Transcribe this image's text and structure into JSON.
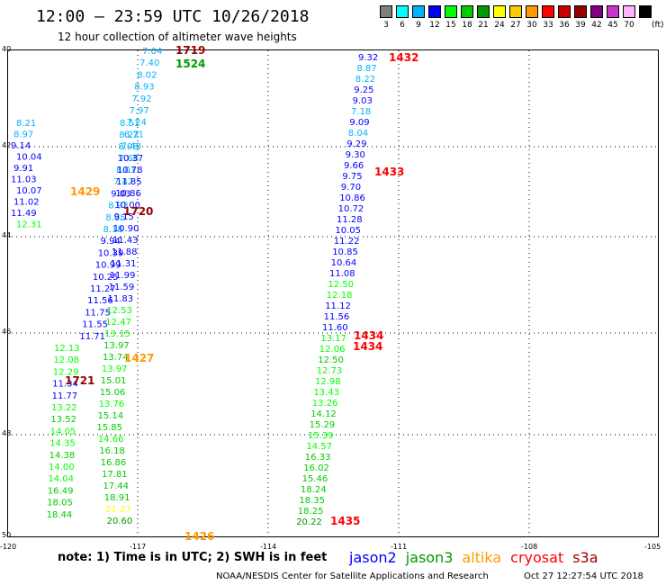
{
  "header": {
    "title": "12:00 – 23:59 UTC 10/26/2018",
    "subtitle": "12 hour collection of altimeter wave heights"
  },
  "scale": {
    "unit": "(ft)",
    "bins": [
      {
        "label": "3",
        "color": "#7f7f7f"
      },
      {
        "label": "6",
        "color": "#00ffff"
      },
      {
        "label": "9",
        "color": "#00b3ff"
      },
      {
        "label": "12",
        "color": "#0000ff"
      },
      {
        "label": "15",
        "color": "#00ff00"
      },
      {
        "label": "18",
        "color": "#00cc00"
      },
      {
        "label": "21",
        "color": "#009900"
      },
      {
        "label": "24",
        "color": "#ffff00"
      },
      {
        "label": "27",
        "color": "#ffcc00"
      },
      {
        "label": "30",
        "color": "#ff9900"
      },
      {
        "label": "33",
        "color": "#ff0000"
      },
      {
        "label": "36",
        "color": "#cc0000"
      },
      {
        "label": "39",
        "color": "#990000"
      },
      {
        "label": "42",
        "color": "#800080"
      },
      {
        "label": "45",
        "color": "#cc33cc"
      },
      {
        "label": "70",
        "color": "#ffb3ff"
      },
      {
        "label": "",
        "color": "#000000"
      }
    ]
  },
  "axes": {
    "x_ticks": [
      "-120",
      "-117",
      "-114",
      "-111",
      "-108",
      "-105"
    ],
    "y_ticks": [
      "40",
      "42",
      "44",
      "46",
      "48",
      "50"
    ]
  },
  "track_west": [
    [
      "7.04",
      "#00b3ff"
    ],
    [
      "7.40",
      "#00b3ff"
    ],
    [
      "8.02",
      "#00b3ff"
    ],
    [
      "8.93",
      "#00b3ff"
    ],
    [
      "7.92",
      "#00b3ff"
    ],
    [
      "7.97",
      "#00b3ff"
    ],
    [
      "7.24",
      "#00b3ff"
    ],
    [
      "6.71",
      "#00b3ff"
    ],
    [
      "7.43",
      "#00b3ff"
    ],
    [
      "7.68",
      "#00b3ff"
    ],
    [
      "8.01",
      "#00b3ff"
    ],
    [
      "7.47",
      "#00b3ff"
    ],
    [
      "9.03",
      "#0000ff"
    ],
    [
      "8.93",
      "#00b3ff"
    ],
    [
      "8.65",
      "#00b3ff"
    ],
    [
      "8.18",
      "#00b3ff"
    ],
    [
      "9.94",
      "#0000ff"
    ],
    [
      "10.39",
      "#0000ff"
    ],
    [
      "10.99",
      "#0000ff"
    ],
    [
      "10.25",
      "#0000ff"
    ],
    [
      "11.27",
      "#0000ff"
    ],
    [
      "11.56",
      "#0000ff"
    ],
    [
      "11.75",
      "#0000ff"
    ],
    [
      "11.55",
      "#0000ff"
    ],
    [
      "11.71",
      "#0000ff"
    ],
    [
      "12.13",
      "#00ff00"
    ],
    [
      "12.08",
      "#00ff00"
    ],
    [
      "12.29",
      "#00ff00"
    ],
    [
      "11.34",
      "#0000ff"
    ],
    [
      "11.77",
      "#0000ff"
    ],
    [
      "13.22",
      "#00ff00"
    ],
    [
      "13.52",
      "#00cc00"
    ],
    [
      "14.05",
      "#00ff00"
    ],
    [
      "14.35",
      "#00ff00"
    ],
    [
      "14.38",
      "#00cc00"
    ],
    [
      "14.00",
      "#00ff00"
    ],
    [
      "14.04",
      "#00ff00"
    ],
    [
      "16.49",
      "#00cc00"
    ],
    [
      "18.05",
      "#00cc00"
    ],
    [
      "18.44",
      "#00cc00"
    ]
  ],
  "track_mid": [
    [
      "8.21",
      "#00b3ff"
    ],
    [
      "8.97",
      "#00b3ff"
    ],
    [
      "9.14",
      "#0000ff"
    ],
    [
      "10.04",
      "#0000ff"
    ],
    [
      "9.91",
      "#0000ff"
    ],
    [
      "11.03",
      "#0000ff"
    ],
    [
      "10.07",
      "#0000ff"
    ],
    [
      "11.02",
      "#0000ff"
    ],
    [
      "11.49",
      "#0000ff"
    ],
    [
      "12.31",
      "#00ff00"
    ],
    [
      "8.51",
      "#00b3ff"
    ],
    [
      "8.22",
      "#00b3ff"
    ],
    [
      "8.08",
      "#00b3ff"
    ],
    [
      "10.37",
      "#0000ff"
    ],
    [
      "10.78",
      "#0000ff"
    ],
    [
      "11.85",
      "#0000ff"
    ],
    [
      "10.86",
      "#0000ff"
    ],
    [
      "10.00",
      "#0000ff"
    ],
    [
      "9.15",
      "#0000ff"
    ],
    [
      "10.90",
      "#0000ff"
    ],
    [
      "11.43",
      "#0000ff"
    ],
    [
      "11.88",
      "#0000ff"
    ],
    [
      "11.31",
      "#0000ff"
    ],
    [
      "11.99",
      "#0000ff"
    ],
    [
      "11.59",
      "#0000ff"
    ],
    [
      "11.83",
      "#0000ff"
    ],
    [
      "12.53",
      "#00ff00"
    ],
    [
      "12.47",
      "#00ff00"
    ],
    [
      "13.15",
      "#00ff00"
    ],
    [
      "13.97",
      "#00cc00"
    ],
    [
      "13.74",
      "#00cc00"
    ],
    [
      "13.97",
      "#00ff00"
    ],
    [
      "15.01",
      "#00cc00"
    ],
    [
      "15.06",
      "#00cc00"
    ],
    [
      "13.76",
      "#00ff00"
    ],
    [
      "15.14",
      "#00cc00"
    ],
    [
      "15.85",
      "#00cc00"
    ],
    [
      "14.66",
      "#00ff00"
    ],
    [
      "16.18",
      "#00cc00"
    ],
    [
      "16.86",
      "#00cc00"
    ],
    [
      "17.81",
      "#00cc00"
    ],
    [
      "17.44",
      "#00cc00"
    ],
    [
      "18.91",
      "#00cc00"
    ],
    [
      "21.27",
      "#ffff00"
    ],
    [
      "20.60",
      "#009900"
    ]
  ],
  "track_east": [
    [
      "9.32",
      "#0000ff"
    ],
    [
      "8.87",
      "#00b3ff"
    ],
    [
      "8.22",
      "#00b3ff"
    ],
    [
      "9.25",
      "#0000ff"
    ],
    [
      "9.03",
      "#0000ff"
    ],
    [
      "7.18",
      "#00b3ff"
    ],
    [
      "9.09",
      "#0000ff"
    ],
    [
      "8.04",
      "#00b3ff"
    ],
    [
      "9.29",
      "#0000ff"
    ],
    [
      "9.30",
      "#0000ff"
    ],
    [
      "9.66",
      "#0000ff"
    ],
    [
      "9.75",
      "#0000ff"
    ],
    [
      "9.70",
      "#0000ff"
    ],
    [
      "10.86",
      "#0000ff"
    ],
    [
      "10.72",
      "#0000ff"
    ],
    [
      "11.28",
      "#0000ff"
    ],
    [
      "10.05",
      "#0000ff"
    ],
    [
      "11.22",
      "#0000ff"
    ],
    [
      "10.85",
      "#0000ff"
    ],
    [
      "10.64",
      "#0000ff"
    ],
    [
      "11.08",
      "#0000ff"
    ],
    [
      "12.50",
      "#00ff00"
    ],
    [
      "12.18",
      "#00ff00"
    ],
    [
      "11.12",
      "#0000ff"
    ],
    [
      "11.56",
      "#0000ff"
    ],
    [
      "11.60",
      "#0000ff"
    ],
    [
      "13.17",
      "#00ff00"
    ],
    [
      "12.06",
      "#00ff00"
    ],
    [
      "12.50",
      "#00cc00"
    ],
    [
      "12.73",
      "#00ff00"
    ],
    [
      "12.98",
      "#00ff00"
    ],
    [
      "13.43",
      "#00ff00"
    ],
    [
      "13.26",
      "#00ff00"
    ],
    [
      "14.12",
      "#00cc00"
    ],
    [
      "15.29",
      "#00cc00"
    ],
    [
      "15.39",
      "#00ff00"
    ],
    [
      "14.57",
      "#00ff00"
    ],
    [
      "16.33",
      "#00cc00"
    ],
    [
      "16.02",
      "#00cc00"
    ],
    [
      "15.46",
      "#00cc00"
    ],
    [
      "18.24",
      "#00cc00"
    ],
    [
      "18.35",
      "#00cc00"
    ],
    [
      "18.25",
      "#00cc00"
    ],
    [
      "20.22",
      "#009900"
    ]
  ],
  "pass_times": [
    {
      "label": "1719",
      "color": "#990000"
    },
    {
      "label": "1524",
      "color": "#009900"
    },
    {
      "label": "1432",
      "color": "#ff0000"
    },
    {
      "label": "1433",
      "color": "#ff0000"
    },
    {
      "label": "1720",
      "color": "#990000"
    },
    {
      "label": "1429",
      "color": "#ff9900"
    },
    {
      "label": "1434",
      "color": "#ff0000"
    },
    {
      "label": "1434",
      "color": "#ff0000"
    },
    {
      "label": "1427",
      "color": "#ff9900"
    },
    {
      "label": "1721",
      "color": "#990000"
    },
    {
      "label": "1435",
      "color": "#ff0000"
    },
    {
      "label": "1426",
      "color": "#ff9900"
    }
  ],
  "footer": {
    "note": "note: 1) Time is in UTC; 2) SWH is in feet",
    "legend": [
      {
        "label": "jason2",
        "color": "#0000ff"
      },
      {
        "label": "jason3",
        "color": "#009900"
      },
      {
        "label": "altika",
        "color": "#ff9900"
      },
      {
        "label": "cryosat",
        "color": "#ff0000"
      },
      {
        "label": "s3a",
        "color": "#990000"
      }
    ],
    "credit": "NOAA/NESDIS Center for Satellite Applications and Research",
    "timestamp": "Oct 27 12:27:54 UTC 2018"
  }
}
